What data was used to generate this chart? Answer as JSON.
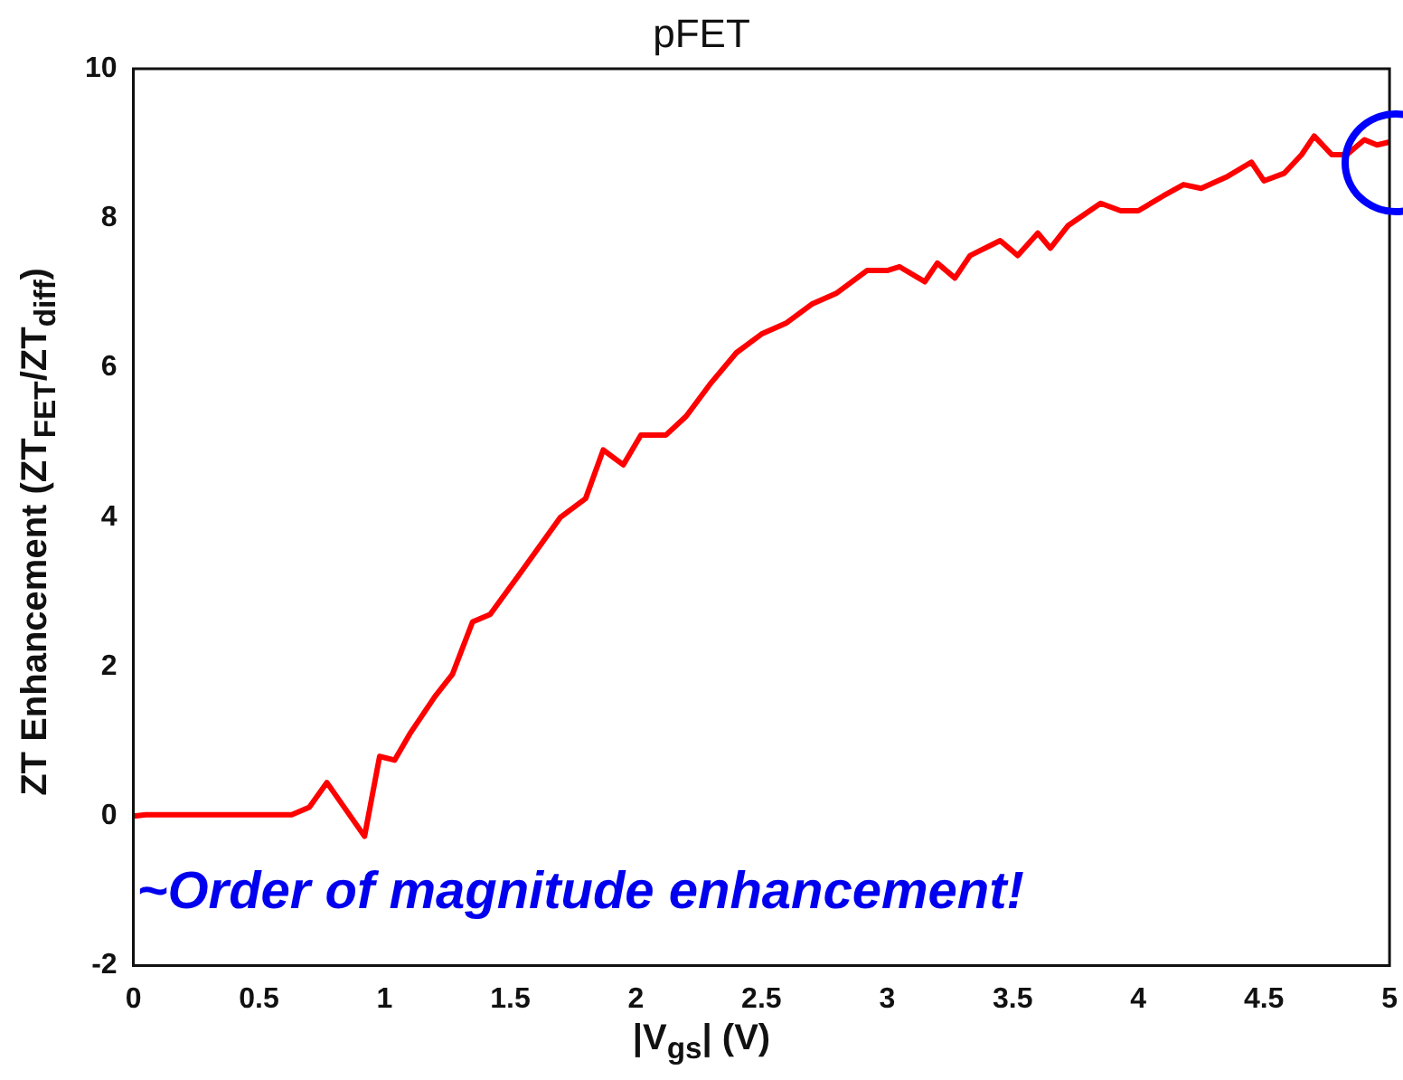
{
  "chart_data": {
    "type": "line",
    "title": "pFET",
    "xlabel": "|V$_{gs}$| (V)",
    "ylabel": "ZT Enhancement (ZT$_{FET}$/ZT$_{diff}$)",
    "annotations": [
      "~Order of magnitude enhancement!"
    ],
    "xlim": [
      0,
      5
    ],
    "xticks": [
      0,
      0.5,
      1,
      1.5,
      2,
      2.5,
      3,
      3.5,
      4,
      4.5,
      5
    ],
    "ylim": [
      -2,
      10
    ],
    "yticks": [
      -2,
      0,
      2,
      4,
      6,
      8,
      10
    ],
    "grid": false,
    "legend": false,
    "marker": "none",
    "line_style": "solid",
    "series": [
      {
        "color": "#ff0000",
        "x": [
          0,
          0.05,
          0.63,
          0.7,
          0.77,
          0.92,
          0.98,
          1.04,
          1.1,
          1.2,
          1.27,
          1.35,
          1.42,
          1.55,
          1.7,
          1.8,
          1.87,
          1.95,
          2.02,
          2.12,
          2.2,
          2.3,
          2.4,
          2.5,
          2.6,
          2.7,
          2.8,
          2.92,
          3.0,
          3.05,
          3.15,
          3.2,
          3.27,
          3.33,
          3.45,
          3.52,
          3.6,
          3.65,
          3.72,
          3.85,
          3.93,
          4.0,
          4.1,
          4.18,
          4.25,
          4.35,
          4.45,
          4.5,
          4.58,
          4.65,
          4.7,
          4.77,
          4.83,
          4.9,
          4.95,
          5.0
        ],
        "values": [
          0,
          0.02,
          0.02,
          0.12,
          0.45,
          -0.27,
          0.8,
          0.75,
          1.1,
          1.6,
          1.9,
          2.6,
          2.7,
          3.3,
          4.0,
          4.25,
          4.9,
          4.7,
          5.1,
          5.1,
          5.35,
          5.8,
          6.2,
          6.45,
          6.6,
          6.85,
          7.0,
          7.3,
          7.3,
          7.35,
          7.15,
          7.4,
          7.2,
          7.5,
          7.7,
          7.5,
          7.8,
          7.6,
          7.9,
          8.2,
          8.1,
          8.1,
          8.3,
          8.45,
          8.4,
          8.55,
          8.75,
          8.5,
          8.6,
          8.85,
          9.1,
          8.85,
          8.85,
          9.05,
          8.98,
          9.02
        ]
      }
    ]
  }
}
